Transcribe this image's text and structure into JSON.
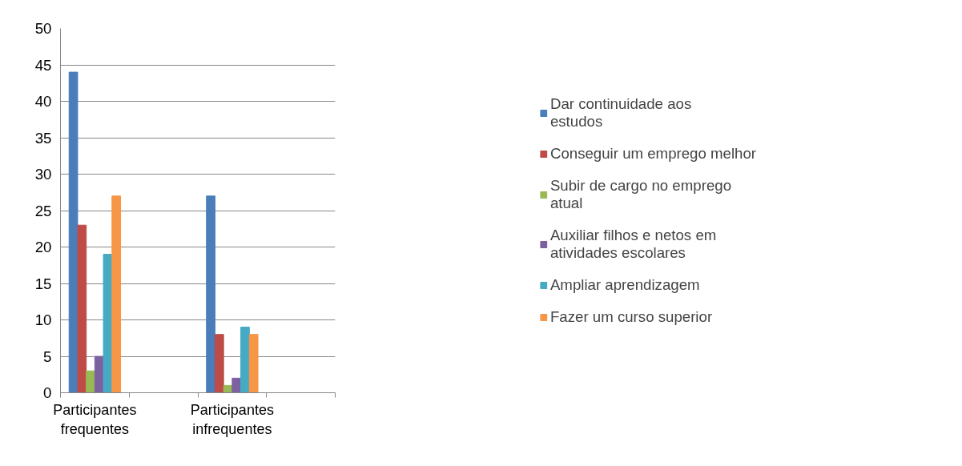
{
  "chart_data": {
    "type": "bar",
    "categories": [
      "Participantes frequentes",
      null,
      "Participantes infrequentes",
      null
    ],
    "series": [
      {
        "name": "Dar continuidade aos estudos",
        "color": "#4a7ebb",
        "values": [
          44,
          null,
          27,
          null
        ]
      },
      {
        "name": "Conseguir um emprego melhor",
        "color": "#be4b48",
        "values": [
          23,
          null,
          8,
          null
        ]
      },
      {
        "name": "Subir de cargo no emprego atual",
        "color": "#98b954",
        "values": [
          3,
          null,
          1,
          null
        ]
      },
      {
        "name": "Auxiliar filhos e netos em atividades escolares",
        "color": "#7d60a0",
        "values": [
          5,
          null,
          2,
          null
        ]
      },
      {
        "name": "Ampliar aprendizagem",
        "color": "#46aac5",
        "values": [
          19,
          null,
          9,
          null
        ]
      },
      {
        "name": "Fazer um curso superior",
        "color": "#f79646",
        "values": [
          27,
          null,
          8,
          null
        ]
      }
    ],
    "ylim": [
      0,
      50
    ],
    "yticks": [
      0,
      5,
      10,
      15,
      20,
      25,
      30,
      35,
      40,
      45,
      50
    ],
    "grid": "y",
    "legend": "right"
  }
}
